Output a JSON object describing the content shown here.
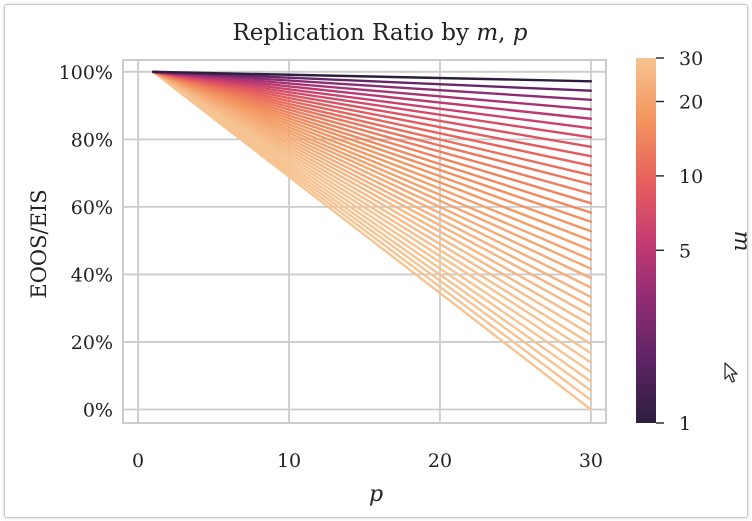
{
  "chart_data": {
    "type": "line",
    "title": "Replication Ratio by m, p",
    "title_prefix": "Replication Ratio by ",
    "title_var1": "m",
    "title_sep": ", ",
    "title_var2": "p",
    "xlabel": "p",
    "ylabel": "EOOS/EIS",
    "xlim": [
      -1,
      31
    ],
    "ylim": [
      -0.04,
      1.035
    ],
    "x_ticks": [
      0,
      10,
      20,
      30
    ],
    "y_ticks": [
      0,
      0.2,
      0.4,
      0.6,
      0.8,
      1.0
    ],
    "y_tick_labels": [
      "0%",
      "20%",
      "40%",
      "60%",
      "80%",
      "100%"
    ],
    "grid": true,
    "x_start": 1,
    "x_end": 30,
    "series_by_m": [
      {
        "m": 1,
        "end_value": 0.972
      },
      {
        "m": 2,
        "end_value": 0.944
      },
      {
        "m": 3,
        "end_value": 0.917
      },
      {
        "m": 4,
        "end_value": 0.889
      },
      {
        "m": 5,
        "end_value": 0.861
      },
      {
        "m": 6,
        "end_value": 0.833
      },
      {
        "m": 7,
        "end_value": 0.806
      },
      {
        "m": 8,
        "end_value": 0.778
      },
      {
        "m": 9,
        "end_value": 0.75
      },
      {
        "m": 10,
        "end_value": 0.722
      },
      {
        "m": 11,
        "end_value": 0.694
      },
      {
        "m": 12,
        "end_value": 0.667
      },
      {
        "m": 13,
        "end_value": 0.639
      },
      {
        "m": 14,
        "end_value": 0.611
      },
      {
        "m": 15,
        "end_value": 0.583
      },
      {
        "m": 16,
        "end_value": 0.556
      },
      {
        "m": 17,
        "end_value": 0.528
      },
      {
        "m": 18,
        "end_value": 0.5
      },
      {
        "m": 19,
        "end_value": 0.472
      },
      {
        "m": 20,
        "end_value": 0.444
      },
      {
        "m": 21,
        "end_value": 0.417
      },
      {
        "m": 22,
        "end_value": 0.389
      },
      {
        "m": 23,
        "end_value": 0.361
      },
      {
        "m": 24,
        "end_value": 0.333
      },
      {
        "m": 25,
        "end_value": 0.306
      },
      {
        "m": 26,
        "end_value": 0.278
      },
      {
        "m": 27,
        "end_value": 0.25
      },
      {
        "m": 28,
        "end_value": 0.222
      },
      {
        "m": 29,
        "end_value": 0.194
      },
      {
        "m": 30,
        "end_value": 0.167
      },
      {
        "m": 31,
        "end_value": 0.139
      },
      {
        "m": 32,
        "end_value": 0.111
      },
      {
        "m": 33,
        "end_value": 0.083
      },
      {
        "m": 34,
        "end_value": 0.056
      },
      {
        "m": 35,
        "end_value": 0.028
      },
      {
        "m": 36,
        "end_value": 0.0
      }
    ],
    "colorbar": {
      "label": "m",
      "scale": "log",
      "range": [
        1,
        30
      ],
      "ticks": [
        1,
        5,
        10,
        20,
        30
      ],
      "tick_labels": [
        "1",
        "5",
        "10",
        "20",
        "30"
      ],
      "colors": [
        "#2d1e3e",
        "#5b2463",
        "#8f2c74",
        "#c43b71",
        "#e8615d",
        "#f3955e",
        "#f6c492"
      ]
    }
  },
  "colors": {
    "grid": "#cccccc",
    "spine": "#cccccc",
    "text": "#222222"
  }
}
